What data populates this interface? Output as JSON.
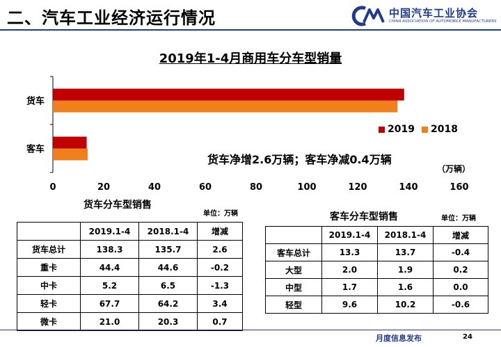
{
  "header": {
    "title": "二、汽车工业经济运行情况",
    "org_name": "中国汽车工业协会",
    "org_name_en": "CHINA ASSOCIATION OF AUTOMOBILE MANUFACTURERS",
    "accent_color": "#1f3b8c"
  },
  "chart_data": {
    "type": "bar",
    "orientation": "horizontal",
    "title": "2019年1-4月商用车分车型销量",
    "categories": [
      "货车",
      "客车"
    ],
    "series": [
      {
        "name": "2019",
        "color": "#c00000",
        "values": [
          138.3,
          13.3
        ]
      },
      {
        "name": "2018",
        "color": "#f07f1e",
        "values": [
          135.7,
          13.7
        ]
      }
    ],
    "xlim": [
      0,
      160
    ],
    "xticks": [
      "0",
      "20",
      "40",
      "60",
      "80",
      "100",
      "120",
      "140",
      "160"
    ],
    "unit": "（万辆）",
    "annotation": "货车净增2.6万辆；客车净减0.4万辆",
    "grid": false,
    "legend_position": "right"
  },
  "truck_table": {
    "title": "货车分车型销售",
    "unit": "单位：万辆",
    "columns": [
      "",
      "2019.1-4",
      "2018.1-4",
      "增减"
    ],
    "rows": [
      [
        "货车总计",
        "138.3",
        "135.7",
        "2.6"
      ],
      [
        "重卡",
        "44.4",
        "44.6",
        "-0.2"
      ],
      [
        "中卡",
        "5.2",
        "6.5",
        "-1.3"
      ],
      [
        "轻卡",
        "67.7",
        "64.2",
        "3.4"
      ],
      [
        "微卡",
        "21.0",
        "20.3",
        "0.7"
      ]
    ]
  },
  "bus_table": {
    "title": "客车分车型销售",
    "unit": "单位：万辆",
    "columns": [
      "",
      "2019.1-4",
      "2018.1-4",
      "增减"
    ],
    "rows": [
      [
        "客车总计",
        "13.3",
        "13.7",
        "-0.4"
      ],
      [
        "大型",
        "2.0",
        "1.9",
        "0.2"
      ],
      [
        "中型",
        "1.7",
        "1.6",
        "0.0"
      ],
      [
        "轻型",
        "9.6",
        "10.2",
        "-0.6"
      ]
    ]
  },
  "footer": {
    "text": "月度信息发布",
    "page": "24"
  }
}
